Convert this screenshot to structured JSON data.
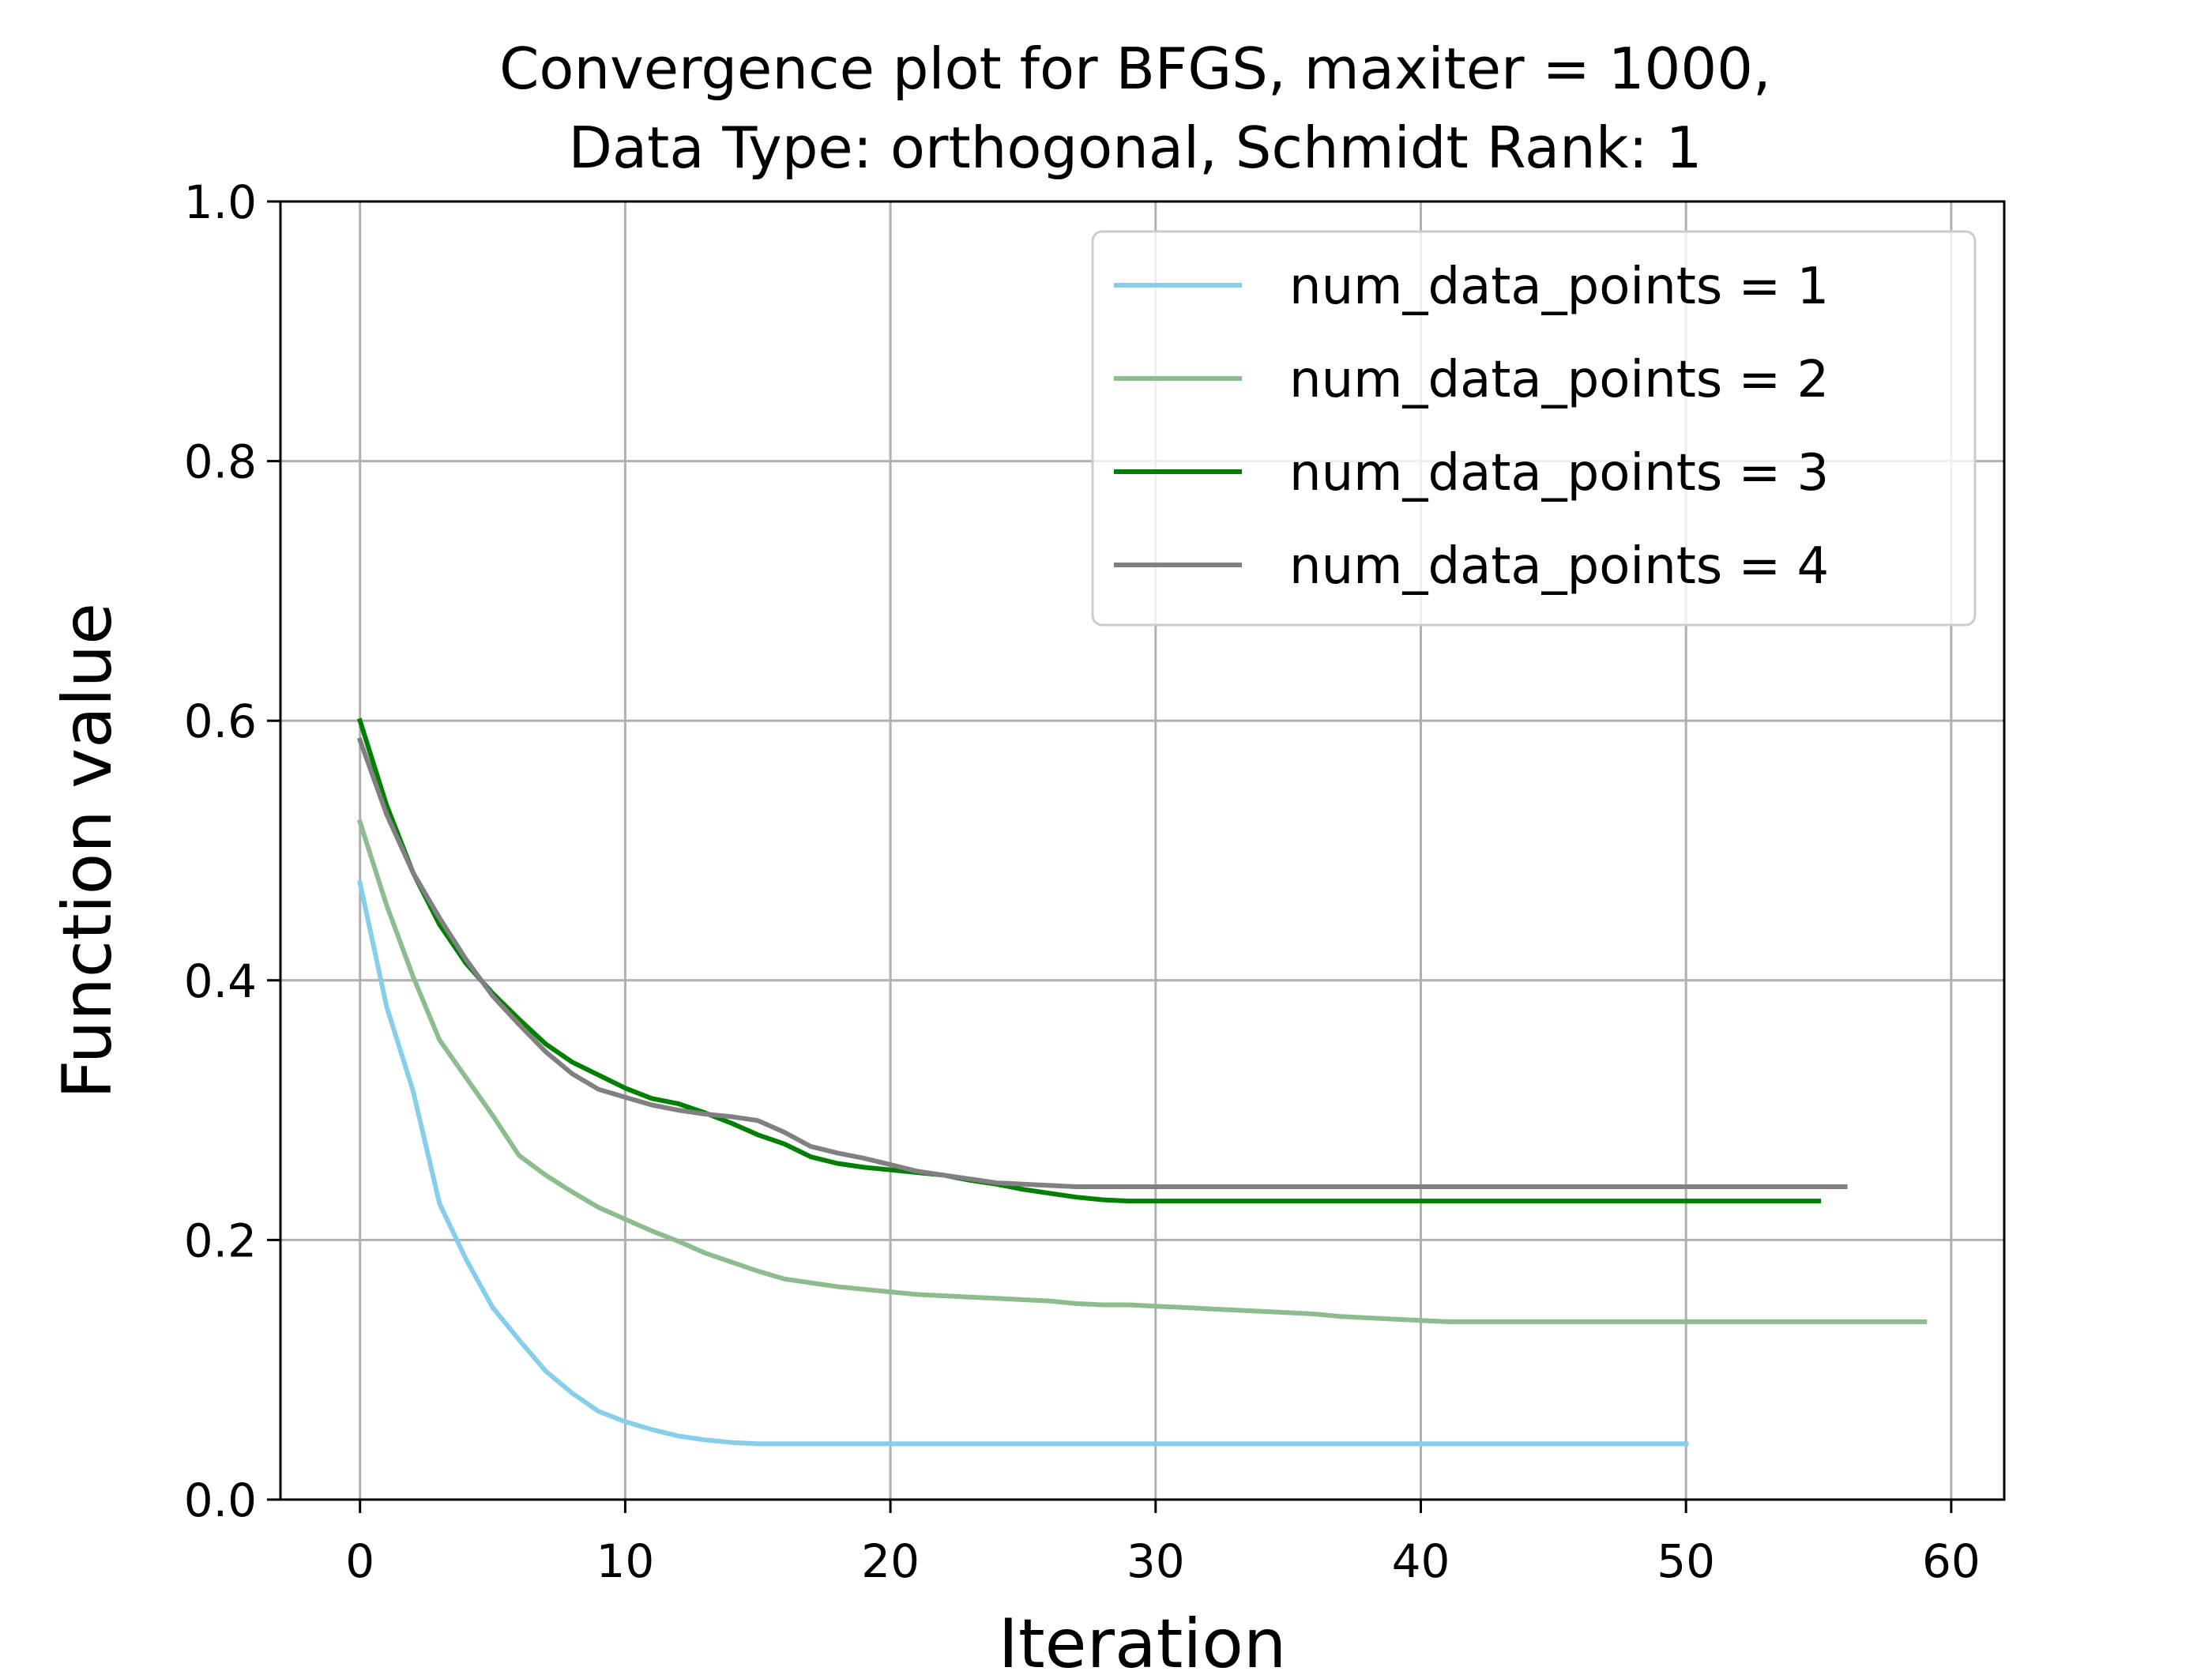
{
  "chart_data": {
    "type": "line",
    "title_lines": [
      "Convergence plot for BFGS, maxiter = 1000,",
      "Data Type: orthogonal, Schmidt Rank: 1"
    ],
    "xlabel": "Iteration",
    "ylabel": "Function value",
    "xlim": [
      -3,
      62
    ],
    "ylim": [
      0,
      1
    ],
    "xticks": [
      0,
      10,
      20,
      30,
      40,
      50,
      60
    ],
    "xtick_labels": [
      "0",
      "10",
      "20",
      "30",
      "40",
      "50",
      "60"
    ],
    "yticks": [
      0.0,
      0.2,
      0.4,
      0.6,
      0.8,
      1.0
    ],
    "ytick_labels": [
      "0.0",
      "0.2",
      "0.4",
      "0.6",
      "0.8",
      "1.0"
    ],
    "grid": true,
    "legend_position": "top-right",
    "series": [
      {
        "name": "num_data_points = 1",
        "color": "#87ceeb",
        "x": [
          0,
          1,
          2,
          3,
          4,
          5,
          6,
          7,
          8,
          9,
          10,
          11,
          12,
          13,
          14,
          15,
          16,
          17,
          18,
          19,
          20,
          21,
          22,
          23,
          24,
          25,
          26,
          27,
          28,
          29,
          30,
          31,
          32,
          33,
          34,
          35,
          36,
          37,
          38,
          39,
          40,
          41,
          42,
          43,
          44,
          45,
          46,
          47,
          48,
          49,
          50
        ],
        "y": [
          0.475,
          0.38,
          0.315,
          0.228,
          0.185,
          0.148,
          0.123,
          0.099,
          0.082,
          0.068,
          0.06,
          0.054,
          0.049,
          0.046,
          0.044,
          0.043,
          0.043,
          0.043,
          0.043,
          0.043,
          0.043,
          0.043,
          0.043,
          0.043,
          0.043,
          0.043,
          0.043,
          0.043,
          0.043,
          0.043,
          0.043,
          0.043,
          0.043,
          0.043,
          0.043,
          0.043,
          0.043,
          0.043,
          0.043,
          0.043,
          0.043,
          0.043,
          0.043,
          0.043,
          0.043,
          0.043,
          0.043,
          0.043,
          0.043,
          0.043,
          0.043
        ]
      },
      {
        "name": "num_data_points = 2",
        "color": "#8fbc8f",
        "x": [
          0,
          1,
          2,
          3,
          4,
          5,
          6,
          7,
          8,
          9,
          10,
          11,
          12,
          13,
          14,
          15,
          16,
          17,
          18,
          19,
          20,
          21,
          22,
          23,
          24,
          25,
          26,
          27,
          28,
          29,
          30,
          31,
          32,
          33,
          34,
          35,
          36,
          37,
          38,
          39,
          40,
          41,
          42,
          43,
          44,
          45,
          46,
          47,
          48,
          49,
          50,
          51,
          52,
          53,
          54,
          55,
          56,
          57,
          58,
          59
        ],
        "y": [
          0.522,
          0.458,
          0.403,
          0.354,
          0.325,
          0.296,
          0.265,
          0.25,
          0.237,
          0.225,
          0.216,
          0.207,
          0.199,
          0.19,
          0.183,
          0.176,
          0.17,
          0.167,
          0.164,
          0.162,
          0.16,
          0.158,
          0.157,
          0.156,
          0.155,
          0.154,
          0.153,
          0.151,
          0.15,
          0.15,
          0.149,
          0.148,
          0.147,
          0.146,
          0.145,
          0.144,
          0.143,
          0.141,
          0.14,
          0.139,
          0.138,
          0.137,
          0.137,
          0.137,
          0.137,
          0.137,
          0.137,
          0.137,
          0.137,
          0.137,
          0.137,
          0.137,
          0.137,
          0.137,
          0.137,
          0.137,
          0.137,
          0.137,
          0.137,
          0.137
        ]
      },
      {
        "name": "num_data_points = 3",
        "color": "#008000",
        "x": [
          0,
          1,
          2,
          3,
          4,
          5,
          6,
          7,
          8,
          9,
          10,
          11,
          12,
          13,
          14,
          15,
          16,
          17,
          18,
          19,
          20,
          21,
          22,
          23,
          24,
          25,
          26,
          27,
          28,
          29,
          30,
          31,
          32,
          33,
          34,
          35,
          36,
          37,
          38,
          39,
          40,
          41,
          42,
          43,
          44,
          45,
          46,
          47,
          48,
          49,
          50,
          51,
          52,
          53,
          54,
          55
        ],
        "y": [
          0.6,
          0.535,
          0.483,
          0.443,
          0.413,
          0.39,
          0.37,
          0.351,
          0.337,
          0.327,
          0.317,
          0.309,
          0.305,
          0.298,
          0.29,
          0.281,
          0.274,
          0.264,
          0.259,
          0.256,
          0.254,
          0.252,
          0.25,
          0.246,
          0.243,
          0.239,
          0.236,
          0.233,
          0.231,
          0.23,
          0.23,
          0.23,
          0.23,
          0.23,
          0.23,
          0.23,
          0.23,
          0.23,
          0.23,
          0.23,
          0.23,
          0.23,
          0.23,
          0.23,
          0.23,
          0.23,
          0.23,
          0.23,
          0.23,
          0.23,
          0.23,
          0.23,
          0.23,
          0.23,
          0.23,
          0.23
        ]
      },
      {
        "name": "num_data_points = 4",
        "color": "#808080",
        "x": [
          0,
          1,
          2,
          3,
          4,
          5,
          6,
          7,
          8,
          9,
          10,
          11,
          12,
          13,
          14,
          15,
          16,
          17,
          18,
          19,
          20,
          21,
          22,
          23,
          24,
          25,
          26,
          27,
          28,
          29,
          30,
          31,
          32,
          33,
          34,
          35,
          36,
          37,
          38,
          39,
          40,
          41,
          42,
          43,
          44,
          45,
          46,
          47,
          48,
          49,
          50,
          51,
          52,
          53,
          54,
          55,
          56
        ],
        "y": [
          0.585,
          0.528,
          0.483,
          0.448,
          0.416,
          0.388,
          0.366,
          0.345,
          0.328,
          0.316,
          0.31,
          0.304,
          0.3,
          0.297,
          0.295,
          0.292,
          0.283,
          0.272,
          0.267,
          0.263,
          0.258,
          0.253,
          0.25,
          0.247,
          0.244,
          0.243,
          0.242,
          0.241,
          0.241,
          0.241,
          0.241,
          0.241,
          0.241,
          0.241,
          0.241,
          0.241,
          0.241,
          0.241,
          0.241,
          0.241,
          0.241,
          0.241,
          0.241,
          0.241,
          0.241,
          0.241,
          0.241,
          0.241,
          0.241,
          0.241,
          0.241,
          0.241,
          0.241,
          0.241,
          0.241,
          0.241,
          0.241
        ]
      }
    ]
  }
}
